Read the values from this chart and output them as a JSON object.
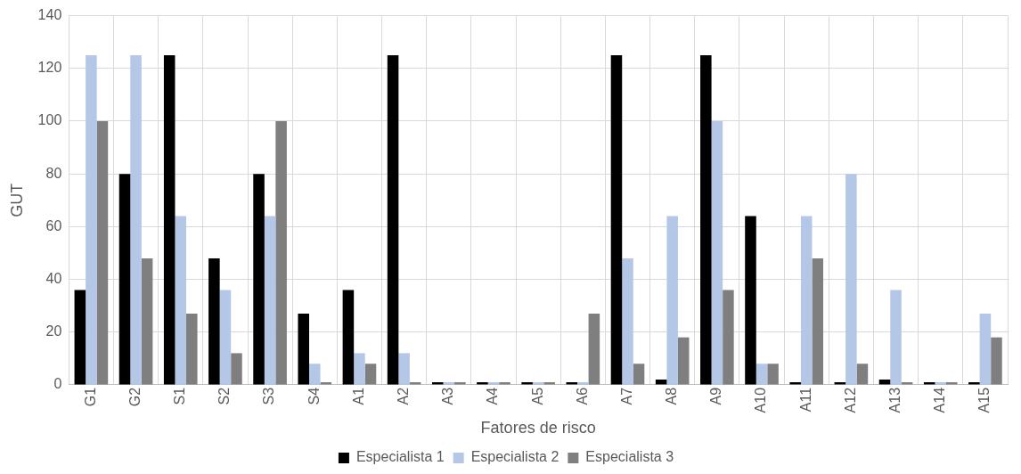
{
  "chart_data": {
    "type": "bar",
    "xlabel": "Fatores de risco",
    "ylabel": "GUT",
    "categories": [
      "G1",
      "G2",
      "S1",
      "S2",
      "S3",
      "S4",
      "A1",
      "A2",
      "A3",
      "A4",
      "A5",
      "A6",
      "A7",
      "A8",
      "A9",
      "A10",
      "A11",
      "A12",
      "A13",
      "A14",
      "A15"
    ],
    "series": [
      {
        "name": "Especialista 1",
        "color": "#000000",
        "values": [
          36,
          80,
          125,
          48,
          80,
          27,
          36,
          125,
          1,
          1,
          1,
          1,
          125,
          2,
          125,
          64,
          1,
          1,
          2,
          1,
          1
        ]
      },
      {
        "name": "Especialista 2",
        "color": "#b4c7e7",
        "values": [
          125,
          125,
          64,
          36,
          64,
          8,
          12,
          12,
          1,
          1,
          1,
          1,
          48,
          64,
          100,
          8,
          64,
          80,
          36,
          1,
          27
        ]
      },
      {
        "name": "Especialista 3",
        "color": "#7f7f7f",
        "values": [
          100,
          48,
          27,
          12,
          100,
          1,
          8,
          1,
          1,
          1,
          1,
          27,
          8,
          18,
          36,
          8,
          48,
          8,
          1,
          1,
          18
        ]
      }
    ],
    "ylim": [
      0,
      140
    ],
    "yticks": [
      0,
      20,
      40,
      60,
      80,
      100,
      120,
      140
    ],
    "grid": true,
    "legend": "bottom"
  }
}
